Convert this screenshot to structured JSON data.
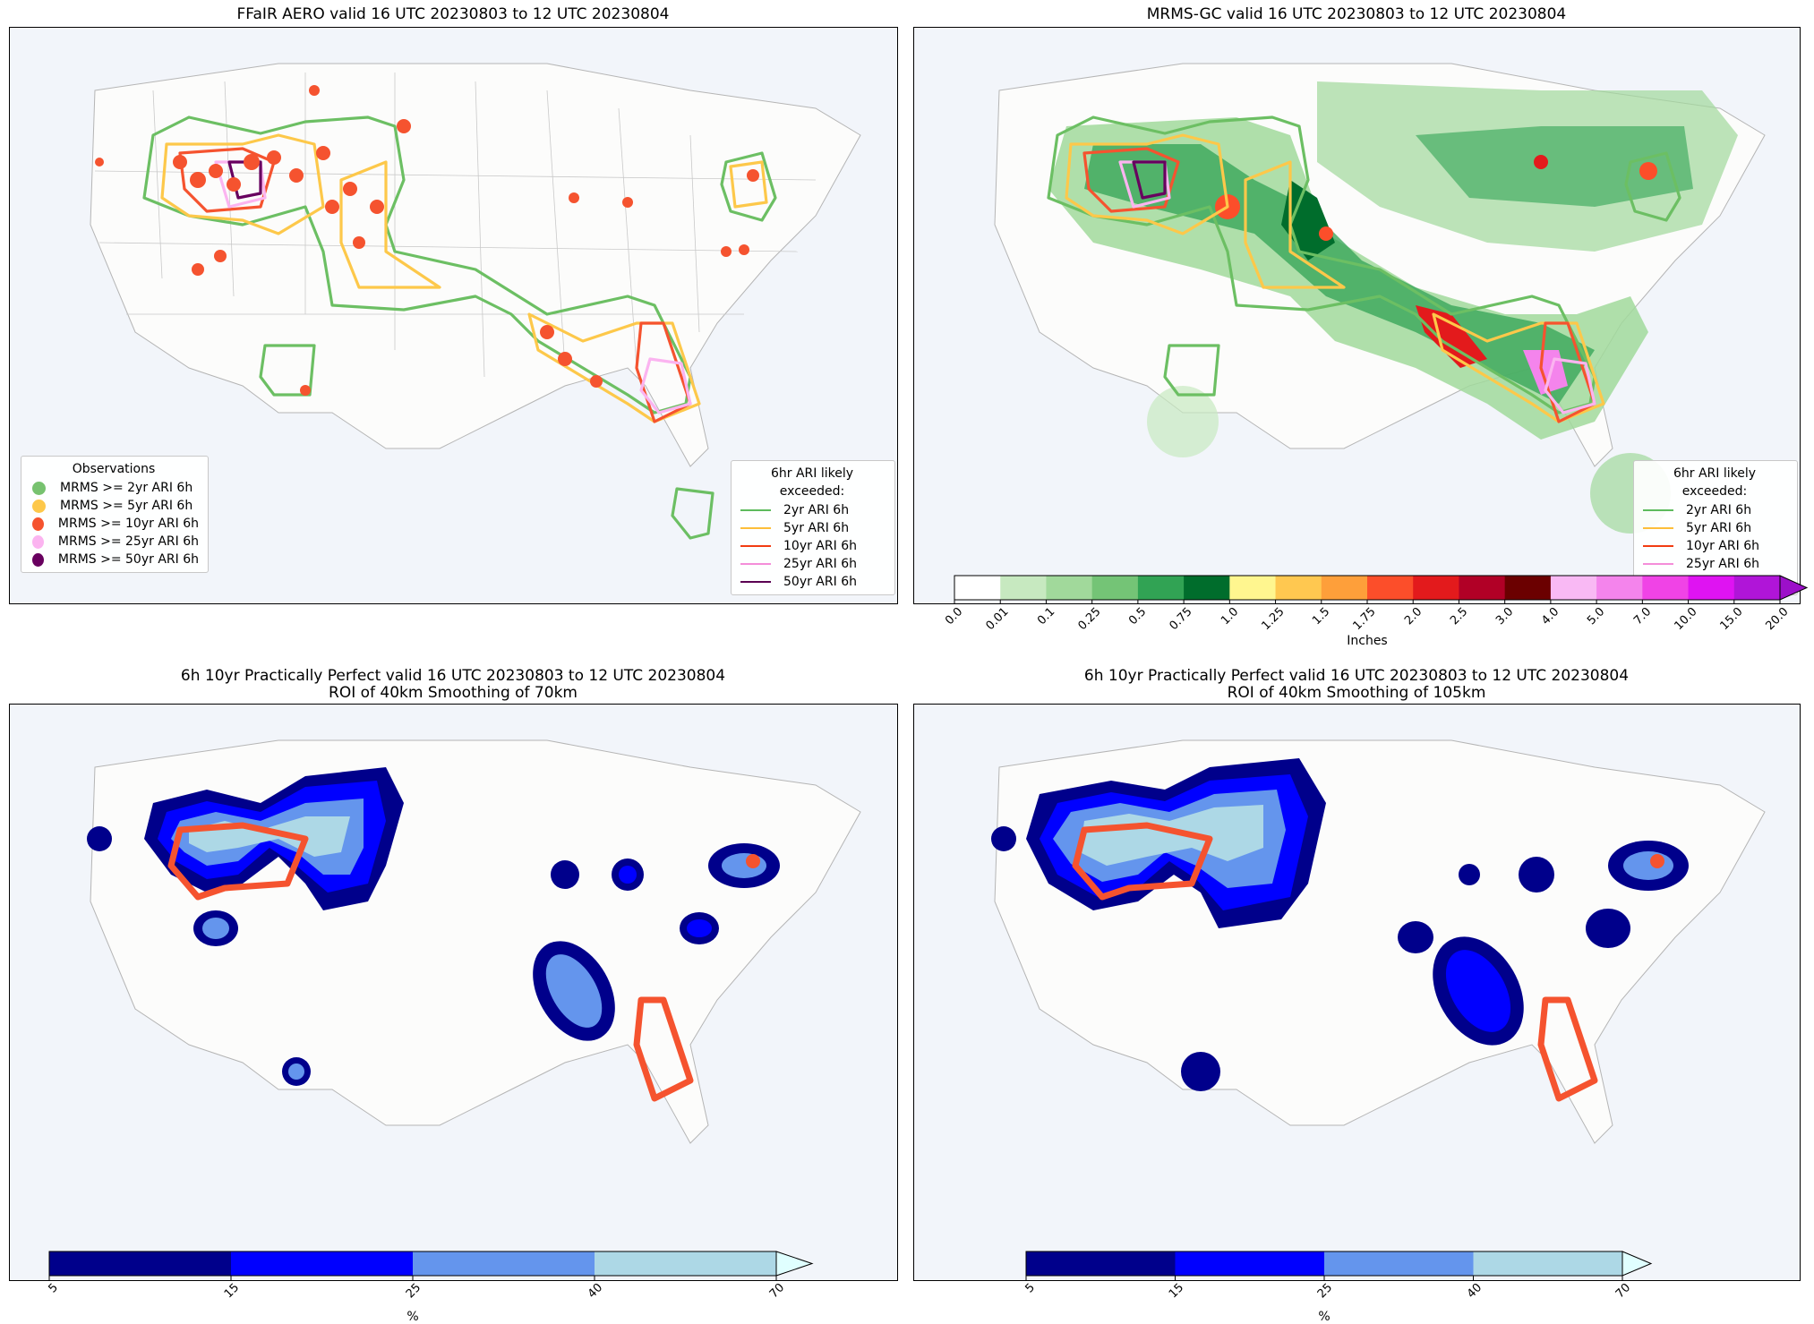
{
  "panels": {
    "p1": {
      "title": "FFaIR AERO valid 16 UTC 20230803 to 12 UTC 20230804"
    },
    "p2": {
      "title": "MRMS-GC valid 16 UTC 20230803 to 12 UTC 20230804"
    },
    "p3": {
      "title_line1": "6h 10yr Practically Perfect valid 16 UTC 20230803 to 12 UTC 20230804",
      "title_line2": "ROI of 40km Smoothing of 70km"
    },
    "p4": {
      "title_line1": "6h 10yr Practically Perfect valid 16 UTC 20230803 to 12 UTC 20230804",
      "title_line2": "ROI of 40km Smoothing of 105km"
    }
  },
  "obs_legend": {
    "title": "Observations",
    "items": [
      {
        "label": "MRMS >= 2yr ARI 6h",
        "color": "#77c26f"
      },
      {
        "label": "MRMS >= 5yr ARI 6h",
        "color": "#fdc84a"
      },
      {
        "label": "MRMS >= 10yr ARI 6h",
        "color": "#f5532f"
      },
      {
        "label": "MRMS >= 25yr ARI 6h",
        "color": "#fbb4f0"
      },
      {
        "label": "MRMS >= 50yr ARI 6h",
        "color": "#68005f"
      }
    ]
  },
  "ari_legend": {
    "title": "6hr ARI likely exceeded:",
    "items": [
      {
        "label": "2yr ARI 6h",
        "color": "#5dbb5d"
      },
      {
        "label": "5yr ARI 6h",
        "color": "#fdbe3a"
      },
      {
        "label": "10yr ARI 6h",
        "color": "#f23c12"
      },
      {
        "label": "25yr ARI 6h",
        "color": "#f48ed9"
      },
      {
        "label": "50yr ARI 6h",
        "color": "#5a0052"
      }
    ]
  },
  "precip_colorbar": {
    "label": "Inches",
    "ticks": [
      "0.0",
      "0.01",
      "0.1",
      "0.25",
      "0.5",
      "0.75",
      "1.0",
      "1.25",
      "1.5",
      "1.75",
      "2.0",
      "2.5",
      "3.0",
      "4.0",
      "5.0",
      "7.0",
      "10.0",
      "15.0",
      "20.0"
    ],
    "colors": [
      "#ffffff",
      "#c7e9c0",
      "#a1d99b",
      "#74c476",
      "#31a354",
      "#006d2c",
      "#fff68f",
      "#ffc850",
      "#fe9f3a",
      "#fc4e2a",
      "#e31a1c",
      "#b10026",
      "#6b0000",
      "#f9b9f4",
      "#f484ec",
      "#f043e6",
      "#df13f2",
      "#b015d8"
    ],
    "extend_color": "#9c10c9"
  },
  "prob_colorbar_1": {
    "label": "%",
    "ticks": [
      "5",
      "15",
      "25",
      "40",
      "70"
    ],
    "colors": [
      "#00008b",
      "#0000ff",
      "#6495ed",
      "#add8e6"
    ],
    "extend_color": "#e0ffff"
  },
  "prob_colorbar_2": {
    "label": "%",
    "ticks": [
      "5",
      "15",
      "25",
      "40",
      "70"
    ],
    "colors": [
      "#00008b",
      "#0000ff",
      "#6495ed",
      "#add8e6"
    ],
    "extend_color": "#e0ffff"
  }
}
